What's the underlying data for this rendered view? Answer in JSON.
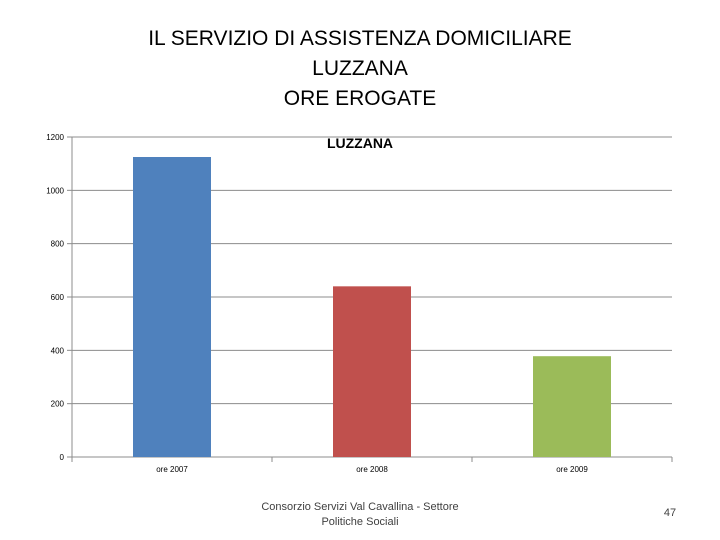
{
  "slide": {
    "title_lines": [
      "IL SERVIZIO DI ASSISTENZA DOMICILIARE",
      "LUZZANA",
      "ORE EROGATE"
    ],
    "footer_lines": [
      "Consorzio Servizi Val Cavallina - Settore",
      "Politiche Sociali"
    ],
    "page_number": "47"
  },
  "chart_data": {
    "type": "bar",
    "title": "LUZZANA",
    "categories": [
      "ore 2007",
      "ore 2008",
      "ore 2009"
    ],
    "values": [
      1125,
      640,
      378
    ],
    "colors": [
      "#4f81bd",
      "#c0504d",
      "#9bbb59"
    ],
    "ylim": [
      0,
      1200
    ],
    "yticks": [
      0,
      200,
      400,
      600,
      800,
      1000,
      1200
    ],
    "grid": true,
    "legend": "none"
  }
}
